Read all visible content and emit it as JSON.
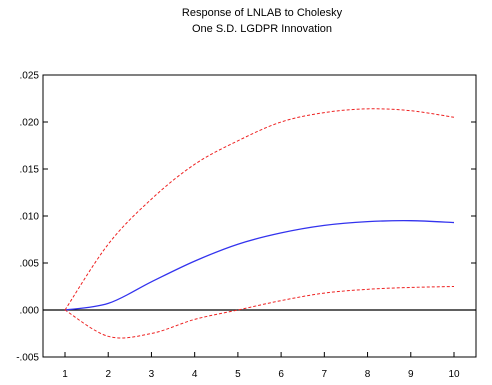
{
  "chart_data": {
    "type": "line",
    "title": [
      "Response of LNLAB to Cholesky",
      "One S.D. LGDPR Innovation"
    ],
    "xlabel": "",
    "ylabel": "",
    "x": [
      1,
      2,
      3,
      4,
      5,
      6,
      7,
      8,
      9,
      10
    ],
    "xticks": [
      "1",
      "2",
      "3",
      "4",
      "5",
      "6",
      "7",
      "8",
      "9",
      "10"
    ],
    "ylim": [
      -0.005,
      0.025
    ],
    "yticks": [
      {
        "value": 0.025,
        "label": ".025"
      },
      {
        "value": 0.02,
        "label": ".020"
      },
      {
        "value": 0.015,
        "label": ".015"
      },
      {
        "value": 0.01,
        "label": ".010"
      },
      {
        "value": 0.005,
        "label": ".005"
      },
      {
        "value": 0.0,
        "label": ".000"
      },
      {
        "value": -0.005,
        "label": "-.005"
      }
    ],
    "zero_line": 0,
    "grid": false,
    "series": [
      {
        "role": "response",
        "style": "solid",
        "color": "#3333ee",
        "values": [
          0.0,
          0.0007,
          0.003,
          0.0052,
          0.007,
          0.0082,
          0.009,
          0.0094,
          0.0095,
          0.0093
        ]
      },
      {
        "role": "upper",
        "style": "dashed",
        "color": "#ee2222",
        "values": [
          0.0,
          0.007,
          0.0118,
          0.0155,
          0.018,
          0.02,
          0.021,
          0.0214,
          0.0212,
          0.0205
        ]
      },
      {
        "role": "lower",
        "style": "dashed",
        "color": "#ee2222",
        "values": [
          0.0,
          -0.0028,
          -0.0025,
          -0.001,
          0.0,
          0.001,
          0.0018,
          0.0022,
          0.0024,
          0.0025
        ]
      }
    ]
  }
}
